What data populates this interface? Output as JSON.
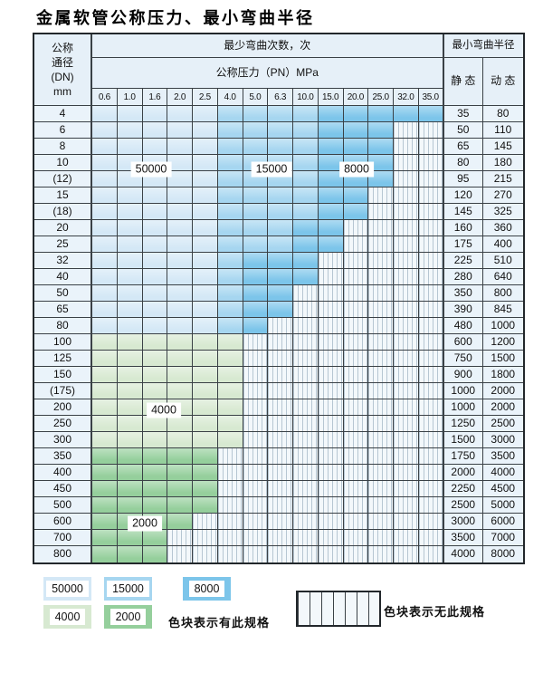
{
  "title": "金属软管公称压力、最小弯曲半径",
  "table": {
    "header": {
      "dn_lines": [
        "公称",
        "通径",
        "(DN)",
        "mm"
      ],
      "bend_cycles": "最少弯曲次数，次",
      "pressure_group": "公称压力（PN）MPa",
      "pressure_columns": [
        "0.6",
        "1.0",
        "1.6",
        "2.0",
        "2.5",
        "4.0",
        "5.0",
        "6.3",
        "10.0",
        "15.0",
        "20.0",
        "25.0",
        "32.0",
        "35.0"
      ],
      "radius_group": "最小弯曲半径",
      "static_label": "静 态",
      "dynamic_label": "动 态"
    },
    "band_values": {
      "b1": "50000",
      "b2": "15000",
      "b3": "8000",
      "g1": "4000",
      "g2": "2000"
    },
    "overlay_labels": [
      "50000",
      "15000",
      "8000",
      "4000",
      "2000"
    ],
    "rows": [
      {
        "dn": "4",
        "static": "35",
        "dynamic": "80",
        "cells": [
          "b1",
          "b1",
          "b1",
          "b1",
          "b1",
          "b2",
          "b2",
          "b2",
          "b2",
          "b3",
          "b3",
          "b3",
          "b3",
          "b3"
        ]
      },
      {
        "dn": "6",
        "static": "50",
        "dynamic": "110",
        "cells": [
          "b1",
          "b1",
          "b1",
          "b1",
          "b1",
          "b2",
          "b2",
          "b2",
          "b2",
          "b3",
          "b3",
          "b3",
          "x",
          "x"
        ]
      },
      {
        "dn": "8",
        "static": "65",
        "dynamic": "145",
        "cells": [
          "b1",
          "b1",
          "b1",
          "b1",
          "b1",
          "b2",
          "b2",
          "b2",
          "b2",
          "b3",
          "b3",
          "b3",
          "x",
          "x"
        ]
      },
      {
        "dn": "10",
        "static": "80",
        "dynamic": "180",
        "cells": [
          "b1",
          "b1",
          "b1",
          "b1",
          "b1",
          "b2",
          "b2",
          "b2",
          "b2",
          "b3",
          "b3",
          "b3",
          "x",
          "x"
        ]
      },
      {
        "dn": "(12)",
        "static": "95",
        "dynamic": "215",
        "cells": [
          "b1",
          "b1",
          "b1",
          "b1",
          "b1",
          "b2",
          "b2",
          "b2",
          "b2",
          "b3",
          "b3",
          "b3",
          "x",
          "x"
        ]
      },
      {
        "dn": "15",
        "static": "120",
        "dynamic": "270",
        "cells": [
          "b1",
          "b1",
          "b1",
          "b1",
          "b1",
          "b2",
          "b2",
          "b2",
          "b2",
          "b3",
          "b3",
          "x",
          "x",
          "x"
        ]
      },
      {
        "dn": "(18)",
        "static": "145",
        "dynamic": "325",
        "cells": [
          "b1",
          "b1",
          "b1",
          "b1",
          "b1",
          "b2",
          "b2",
          "b2",
          "b2",
          "b3",
          "b3",
          "x",
          "x",
          "x"
        ]
      },
      {
        "dn": "20",
        "static": "160",
        "dynamic": "360",
        "cells": [
          "b1",
          "b1",
          "b1",
          "b1",
          "b1",
          "b2",
          "b2",
          "b2",
          "b3",
          "b3",
          "x",
          "x",
          "x",
          "x"
        ]
      },
      {
        "dn": "25",
        "static": "175",
        "dynamic": "400",
        "cells": [
          "b1",
          "b1",
          "b1",
          "b1",
          "b1",
          "b2",
          "b2",
          "b2",
          "b3",
          "b3",
          "x",
          "x",
          "x",
          "x"
        ]
      },
      {
        "dn": "32",
        "static": "225",
        "dynamic": "510",
        "cells": [
          "b1",
          "b1",
          "b1",
          "b1",
          "b1",
          "b2",
          "b3",
          "b3",
          "b3",
          "x",
          "x",
          "x",
          "x",
          "x"
        ]
      },
      {
        "dn": "40",
        "static": "280",
        "dynamic": "640",
        "cells": [
          "b1",
          "b1",
          "b1",
          "b1",
          "b1",
          "b2",
          "b3",
          "b3",
          "b3",
          "x",
          "x",
          "x",
          "x",
          "x"
        ]
      },
      {
        "dn": "50",
        "static": "350",
        "dynamic": "800",
        "cells": [
          "b1",
          "b1",
          "b1",
          "b1",
          "b1",
          "b2",
          "b3",
          "b3",
          "x",
          "x",
          "x",
          "x",
          "x",
          "x"
        ]
      },
      {
        "dn": "65",
        "static": "390",
        "dynamic": "845",
        "cells": [
          "b1",
          "b1",
          "b1",
          "b1",
          "b1",
          "b2",
          "b3",
          "b3",
          "x",
          "x",
          "x",
          "x",
          "x",
          "x"
        ]
      },
      {
        "dn": "80",
        "static": "480",
        "dynamic": "1000",
        "cells": [
          "b1",
          "b1",
          "b1",
          "b1",
          "b1",
          "b2",
          "b3",
          "x",
          "x",
          "x",
          "x",
          "x",
          "x",
          "x"
        ]
      },
      {
        "dn": "100",
        "static": "600",
        "dynamic": "1200",
        "cells": [
          "g1",
          "g1",
          "g1",
          "g1",
          "g1",
          "g1",
          "x",
          "x",
          "x",
          "x",
          "x",
          "x",
          "x",
          "x"
        ]
      },
      {
        "dn": "125",
        "static": "750",
        "dynamic": "1500",
        "cells": [
          "g1",
          "g1",
          "g1",
          "g1",
          "g1",
          "g1",
          "x",
          "x",
          "x",
          "x",
          "x",
          "x",
          "x",
          "x"
        ]
      },
      {
        "dn": "150",
        "static": "900",
        "dynamic": "1800",
        "cells": [
          "g1",
          "g1",
          "g1",
          "g1",
          "g1",
          "g1",
          "x",
          "x",
          "x",
          "x",
          "x",
          "x",
          "x",
          "x"
        ]
      },
      {
        "dn": "(175)",
        "static": "1000",
        "dynamic": "2000",
        "cells": [
          "g1",
          "g1",
          "g1",
          "g1",
          "g1",
          "g1",
          "x",
          "x",
          "x",
          "x",
          "x",
          "x",
          "x",
          "x"
        ]
      },
      {
        "dn": "200",
        "static": "1000",
        "dynamic": "2000",
        "cells": [
          "g1",
          "g1",
          "g1",
          "g1",
          "g1",
          "g1",
          "x",
          "x",
          "x",
          "x",
          "x",
          "x",
          "x",
          "x"
        ]
      },
      {
        "dn": "250",
        "static": "1250",
        "dynamic": "2500",
        "cells": [
          "g1",
          "g1",
          "g1",
          "g1",
          "g1",
          "g1",
          "x",
          "x",
          "x",
          "x",
          "x",
          "x",
          "x",
          "x"
        ]
      },
      {
        "dn": "300",
        "static": "1500",
        "dynamic": "3000",
        "cells": [
          "g1",
          "g1",
          "g1",
          "g1",
          "g1",
          "g1",
          "x",
          "x",
          "x",
          "x",
          "x",
          "x",
          "x",
          "x"
        ]
      },
      {
        "dn": "350",
        "static": "1750",
        "dynamic": "3500",
        "cells": [
          "g2",
          "g2",
          "g2",
          "g2",
          "g2",
          "x",
          "x",
          "x",
          "x",
          "x",
          "x",
          "x",
          "x",
          "x"
        ]
      },
      {
        "dn": "400",
        "static": "2000",
        "dynamic": "4000",
        "cells": [
          "g2",
          "g2",
          "g2",
          "g2",
          "g2",
          "x",
          "x",
          "x",
          "x",
          "x",
          "x",
          "x",
          "x",
          "x"
        ]
      },
      {
        "dn": "450",
        "static": "2250",
        "dynamic": "4500",
        "cells": [
          "g2",
          "g2",
          "g2",
          "g2",
          "g2",
          "x",
          "x",
          "x",
          "x",
          "x",
          "x",
          "x",
          "x",
          "x"
        ]
      },
      {
        "dn": "500",
        "static": "2500",
        "dynamic": "5000",
        "cells": [
          "g2",
          "g2",
          "g2",
          "g2",
          "g2",
          "x",
          "x",
          "x",
          "x",
          "x",
          "x",
          "x",
          "x",
          "x"
        ]
      },
      {
        "dn": "600",
        "static": "3000",
        "dynamic": "6000",
        "cells": [
          "g2",
          "g2",
          "g2",
          "g2",
          "x",
          "x",
          "x",
          "x",
          "x",
          "x",
          "x",
          "x",
          "x",
          "x"
        ]
      },
      {
        "dn": "700",
        "static": "3500",
        "dynamic": "7000",
        "cells": [
          "g2",
          "g2",
          "g2",
          "x",
          "x",
          "x",
          "x",
          "x",
          "x",
          "x",
          "x",
          "x",
          "x",
          "x"
        ]
      },
      {
        "dn": "800",
        "static": "4000",
        "dynamic": "8000",
        "cells": [
          "g2",
          "g2",
          "g2",
          "x",
          "x",
          "x",
          "x",
          "x",
          "x",
          "x",
          "x",
          "x",
          "x",
          "x"
        ]
      }
    ]
  },
  "legend": {
    "items": [
      {
        "value": "50000",
        "band": "b1"
      },
      {
        "value": "15000",
        "band": "b2"
      },
      {
        "value": "8000",
        "band": "b3"
      },
      {
        "value": "4000",
        "band": "g1"
      },
      {
        "value": "2000",
        "band": "g2"
      }
    ],
    "has_spec_text": "色块表示有此规格",
    "no_spec_text": "色块表示无此规格"
  },
  "colors": {
    "b1": "#d4e8f6",
    "b2": "#a6d6f0",
    "b3": "#7cc5ea",
    "g1": "#d7e9d1",
    "g2": "#95cf9c",
    "hatch_bg": "#f3f8fb",
    "hatch_line": "#b6c6d2",
    "header_bg": "#e6f0f8",
    "label_bg": "#eaf3fa",
    "grid": "#3a4146",
    "border": "#22272b"
  }
}
